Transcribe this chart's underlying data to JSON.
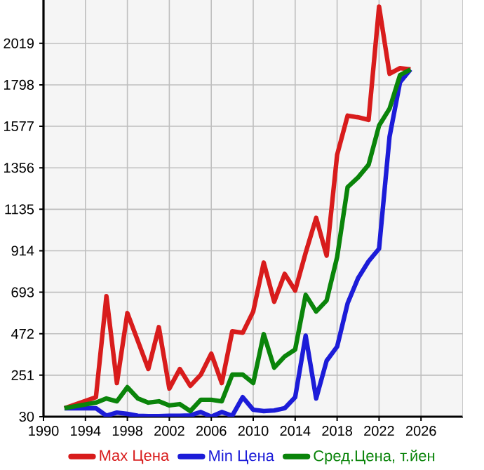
{
  "chart_data": {
    "type": "line",
    "x": [
      1992,
      1995,
      1996,
      1997,
      1998,
      1999,
      2000,
      2001,
      2002,
      2003,
      2004,
      2005,
      2006,
      2007,
      2008,
      2009,
      2010,
      2011,
      2012,
      2013,
      2014,
      2015,
      2016,
      2017,
      2018,
      2019,
      2020,
      2021,
      2022,
      2023,
      2024,
      2025
    ],
    "series": [
      {
        "name": "Max Цена",
        "color": "#d81c1c",
        "values": [
          75,
          134,
          672,
          209,
          582,
          433,
          284,
          507,
          180,
          284,
          194,
          254,
          366,
          209,
          485,
          477,
          590,
          851,
          642,
          791,
          702,
          903,
          1089,
          888,
          1425,
          1634,
          1625,
          1611,
          2215,
          1857,
          1887,
          1880
        ]
      },
      {
        "name": "Min Цена",
        "color": "#1c1cd8",
        "values": [
          75,
          75,
          35,
          52,
          45,
          35,
          33,
          33,
          35,
          35,
          37,
          55,
          30,
          55,
          35,
          134,
          67,
          60,
          63,
          75,
          134,
          462,
          127,
          328,
          403,
          634,
          768,
          858,
          925,
          1522,
          1812,
          1880
        ]
      },
      {
        "name": "Сред.Цена, т.йен",
        "color": "#0a840a",
        "values": [
          75,
          105,
          127,
          112,
          187,
          127,
          105,
          112,
          90,
          97,
          60,
          120,
          120,
          112,
          254,
          254,
          209,
          470,
          291,
          351,
          388,
          679,
          590,
          649,
          880,
          1253,
          1305,
          1372,
          1581,
          1671,
          1850,
          1880
        ]
      }
    ],
    "xlim": [
      1990,
      2030
    ],
    "xticks": [
      1990,
      1994,
      1998,
      2002,
      2006,
      2010,
      2014,
      2018,
      2022,
      2026
    ],
    "ylim": [
      30,
      2250
    ],
    "yticks": [
      30,
      251,
      472,
      693,
      914,
      1135,
      1356,
      1577,
      1798,
      2019
    ],
    "grid": true,
    "legend": "bottom",
    "marker": "none",
    "line_style": "solid"
  }
}
